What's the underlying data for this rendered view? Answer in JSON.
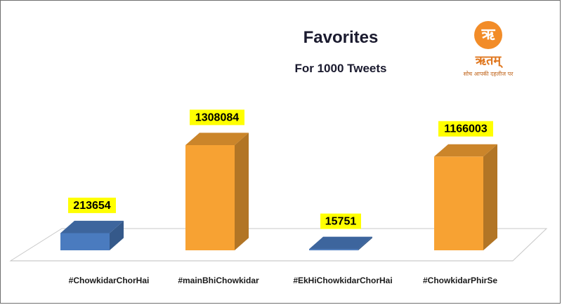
{
  "chart_data": {
    "type": "bar",
    "title": "Favorites",
    "subtitle": "For 1000 Tweets",
    "categories": [
      "#ChowkidarChorHai",
      "#mainBhiChowkidar",
      "#EkHiChowkidarChorHai",
      "#ChowkidarPhirSe"
    ],
    "values": [
      213654,
      1308084,
      15751,
      1166003
    ],
    "data_labels": [
      "213654",
      "1308084",
      "15751",
      "1166003"
    ],
    "ylim": [
      0,
      1500000
    ],
    "grid": false,
    "legend": "none",
    "colors": {
      "blue_bar": "#4a7bbf",
      "orange_bar": "#f7a233",
      "label_bg": "#ffff00"
    },
    "bar_color_groups": [
      "blue",
      "orange",
      "blue",
      "orange"
    ]
  },
  "logo": {
    "emblem": "ऋ",
    "wordmark": "ऋतम्",
    "tagline": "सोच आपकी दहलीज पर"
  }
}
